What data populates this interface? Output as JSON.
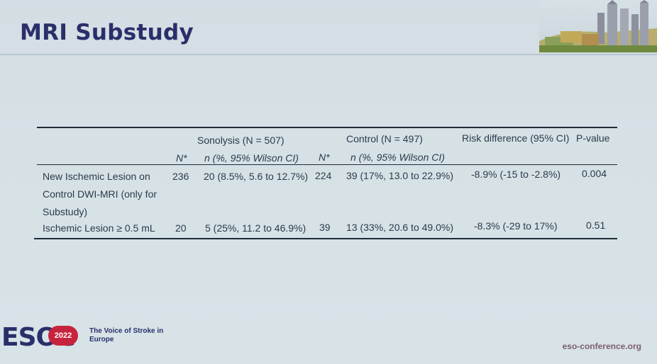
{
  "slide": {
    "title": "MRI Substudy"
  },
  "table": {
    "group_headers": {
      "sonolysis": "Sonolysis (N = 507)",
      "control": "Control (N = 497)",
      "risk_difference": "Risk difference (95% CI)",
      "p_value": "P-value"
    },
    "sub_headers": {
      "n_sonolysis": "N*",
      "n_pct_sonolysis": "n (%, 95% Wilson CI)",
      "n_control": "N*",
      "n_pct_control": "n (%, 95% Wilson CI)"
    },
    "rows": [
      {
        "label_lines": [
          "New  Ischemic  Lesion  on",
          "Control  DWI-MRI  (only  for",
          "Substudy)"
        ],
        "n_sonolysis": "236",
        "sonolysis": "20 (8.5%, 5.6 to 12.7%)",
        "n_control": "224",
        "control": "39 (17%, 13.0 to 22.9%)",
        "risk_difference": "-8.9% (-15 to -2.8%)",
        "p_value": "0.004"
      },
      {
        "label_lines": [
          "Ischemic Lesion ≥ 0.5 mL"
        ],
        "n_sonolysis": "20",
        "sonolysis": "5 (25%, 11.2 to 46.9%)",
        "n_control": "39",
        "control": "13 (33%, 20.6 to 49.0%)",
        "risk_difference": "-8.3% (-29 to 17%)",
        "p_value": "0.51"
      }
    ]
  },
  "footer": {
    "logo_text": "ESOC",
    "logo_year": "2022",
    "tagline": "The Voice of Stroke in Europe",
    "website": "eso-conference.org"
  },
  "colors": {
    "title": "#2a2f6a",
    "accent_red": "#c8233e",
    "background": "#d6e1e6"
  }
}
